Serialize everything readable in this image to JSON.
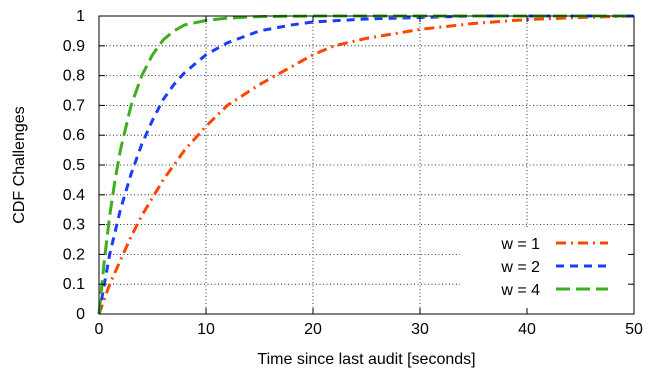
{
  "chart_data": {
    "type": "line",
    "title": "",
    "xlabel": "Time since last audit [seconds]",
    "ylabel": "CDF Challenges",
    "xlim": [
      0,
      50
    ],
    "ylim": [
      0,
      1
    ],
    "x_ticks": [
      0,
      10,
      20,
      30,
      40,
      50
    ],
    "y_ticks": [
      0,
      0.1,
      0.2,
      0.3,
      0.4,
      0.5,
      0.6,
      0.7,
      0.8,
      0.9,
      1
    ],
    "grid": true,
    "legend_position": "bottom-right",
    "series": [
      {
        "name": "w = 1",
        "color": "#ff4500",
        "dash": "dash-dot",
        "x": [
          0,
          1,
          2,
          3,
          4,
          5,
          6,
          8,
          10,
          12,
          15,
          18,
          20,
          22,
          25,
          30,
          35,
          40,
          45,
          50
        ],
        "y": [
          0,
          0.1,
          0.18,
          0.26,
          0.33,
          0.39,
          0.45,
          0.55,
          0.63,
          0.7,
          0.77,
          0.83,
          0.87,
          0.9,
          0.925,
          0.955,
          0.975,
          0.988,
          0.995,
          1.0
        ]
      },
      {
        "name": "w = 2",
        "color": "#1a3cff",
        "dash": "dashed",
        "x": [
          0,
          1,
          2,
          3,
          4,
          5,
          6,
          7,
          8,
          10,
          12,
          15,
          18,
          20,
          25,
          30,
          35,
          40,
          50
        ],
        "y": [
          0,
          0.2,
          0.35,
          0.47,
          0.57,
          0.65,
          0.72,
          0.77,
          0.81,
          0.87,
          0.91,
          0.95,
          0.97,
          0.98,
          0.99,
          0.995,
          1.0,
          1.0,
          1.0
        ]
      },
      {
        "name": "w = 4",
        "color": "#3cb01c",
        "dash": "long-dash",
        "x": [
          0,
          0.5,
          1,
          1.5,
          2,
          3,
          4,
          5,
          6,
          7,
          8,
          10,
          12,
          15,
          20,
          50
        ],
        "y": [
          0,
          0.18,
          0.33,
          0.45,
          0.55,
          0.7,
          0.8,
          0.87,
          0.92,
          0.95,
          0.97,
          0.985,
          0.993,
          0.998,
          1.0,
          1.0
        ]
      }
    ]
  }
}
